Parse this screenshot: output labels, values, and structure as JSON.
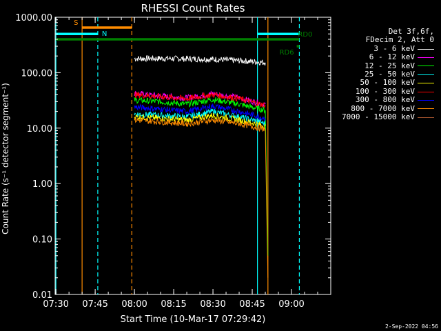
{
  "chart_data": {
    "type": "line",
    "title": "RHESSI Count Rates",
    "xlabel": "Start Time (10-Mar-17 07:29:42)",
    "ylabel": "Count Rate (s⁻¹ detector segment⁻¹)",
    "y_scale": "log",
    "ylim": [
      0.01,
      1000
    ],
    "y_ticks": [
      "0.01",
      "0.10",
      "1.00",
      "10.00",
      "100.00",
      "1000.00"
    ],
    "xlim": [
      "07:29:42",
      "09:15:00"
    ],
    "x_ticks": [
      "07:30",
      "07:45",
      "08:00",
      "08:15",
      "08:30",
      "08:45",
      "09:00"
    ],
    "legend_header": [
      "Det 3f,6f,",
      "FDecim 2, Att 0"
    ],
    "series": [
      {
        "name": "3 - 6 keV",
        "color": "#000000",
        "x": [
          "08:00",
          "08:10",
          "08:20",
          "08:30",
          "08:40",
          "08:48",
          "08:50"
        ],
        "y": [
          180,
          180,
          178,
          175,
          165,
          155,
          152
        ]
      },
      {
        "name": "6 - 12 keV",
        "color": "#ff00ff",
        "x": [
          "08:00",
          "08:10",
          "08:20",
          "08:30",
          "08:40",
          "08:48",
          "08:50"
        ],
        "y": [
          42,
          38,
          35,
          42,
          35,
          28,
          27
        ]
      },
      {
        "name": "12 - 25 keV",
        "color": "#00ff00",
        "x": [
          "08:00",
          "08:10",
          "08:20",
          "08:30",
          "08:40",
          "08:48",
          "08:50",
          "08:51"
        ],
        "y": [
          32,
          30,
          27,
          33,
          27,
          22,
          21,
          0.05
        ]
      },
      {
        "name": "25 - 50 keV",
        "color": "#00ffff",
        "x": [
          "08:00",
          "08:10",
          "08:20",
          "08:30",
          "08:40",
          "08:48",
          "08:50"
        ],
        "y": [
          18,
          17,
          16,
          20,
          16,
          13,
          12
        ]
      },
      {
        "name": "50 - 100 keV",
        "color": "#ffff00",
        "x": [
          "08:00",
          "08:10",
          "08:20",
          "08:30",
          "08:40",
          "08:48",
          "08:50"
        ],
        "y": [
          16,
          15,
          14,
          17,
          14,
          11.5,
          11
        ]
      },
      {
        "name": "100 - 300 keV",
        "color": "#ff0000",
        "x": [
          "08:00",
          "08:10",
          "08:20",
          "08:30",
          "08:40",
          "08:48",
          "08:50"
        ],
        "y": [
          40,
          37,
          34,
          40,
          34,
          27,
          26
        ]
      },
      {
        "name": "300 - 800 keV",
        "color": "#0000ff",
        "x": [
          "08:00",
          "08:10",
          "08:20",
          "08:30",
          "08:40",
          "08:48",
          "08:50"
        ],
        "y": [
          24,
          22,
          20,
          25,
          20,
          16,
          15
        ]
      },
      {
        "name": "800 - 7000 keV",
        "color": "#ff8c00",
        "x": [
          "08:00",
          "08:10",
          "08:20",
          "08:30",
          "08:40",
          "08:48",
          "08:50",
          "08:51"
        ],
        "y": [
          14,
          13,
          12,
          14,
          12,
          10,
          9.5,
          0.02
        ]
      },
      {
        "name": "7000 - 15000 keV",
        "color": "#a0522d",
        "x": [],
        "y": []
      }
    ],
    "overlays": {
      "flags": [
        {
          "label": "S",
          "color": "#ff8c00",
          "x_start": "07:40",
          "x_end": "07:59",
          "y": 650
        },
        {
          "label": "N",
          "color": "#00ffff",
          "x_start": "07:30",
          "x_end": "07:46",
          "y": 500
        },
        {
          "label": "",
          "color": "#00ffff",
          "x_start": "08:47",
          "x_end": "09:03",
          "y": 500
        },
        {
          "label": "RD0",
          "color": "#008000",
          "x_start": "07:30",
          "x_end": "09:03",
          "y": 400
        },
        {
          "label": "RD6",
          "color": "#008000",
          "x_start": "09:02",
          "x_end": "09:03",
          "y": 300
        }
      ],
      "vlines": [
        {
          "x": "07:30",
          "color": "#00ffff",
          "style": "solid"
        },
        {
          "x": "07:40",
          "color": "#ff8c00",
          "style": "solid"
        },
        {
          "x": "07:46",
          "color": "#00ffff",
          "style": "dashed"
        },
        {
          "x": "07:59",
          "color": "#ff8c00",
          "style": "dashed"
        },
        {
          "x": "08:47",
          "color": "#00ffff",
          "style": "solid"
        },
        {
          "x": "08:51",
          "color": "#ff8c00",
          "style": "solid"
        },
        {
          "x": "09:03",
          "color": "#00ffff",
          "style": "dashed"
        }
      ]
    },
    "grid": false,
    "legend_position": "right"
  },
  "footer": {
    "date": "2-Sep-2022 04:56"
  }
}
